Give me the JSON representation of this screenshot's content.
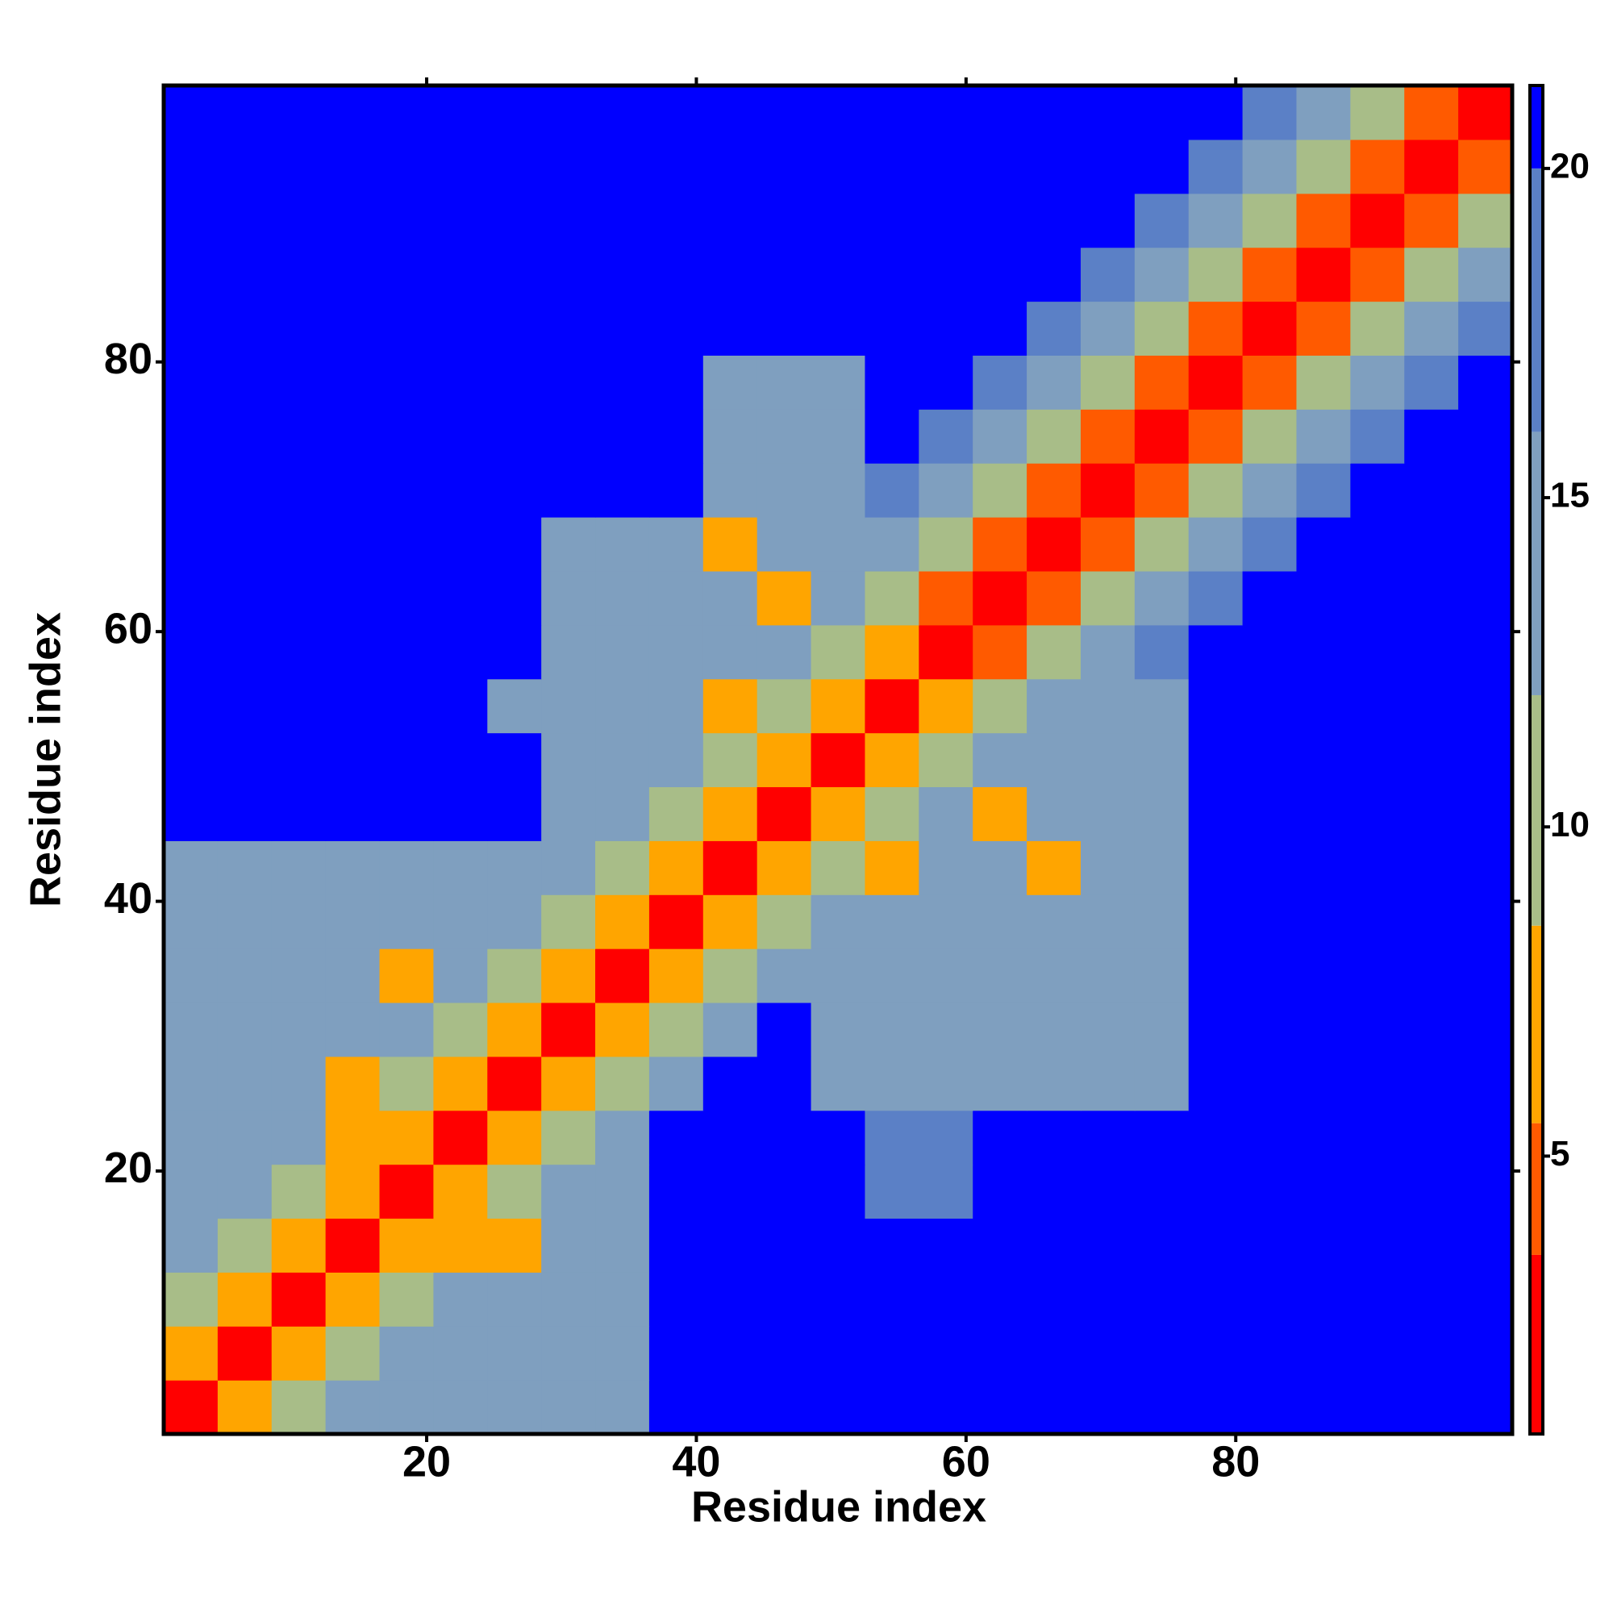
{
  "chart_data": {
    "type": "heatmap",
    "x_label": "Residue index",
    "y_label": "Residue index",
    "x": [
      2.5,
      6.5,
      10.5,
      14.5,
      18.5,
      22.5,
      26.5,
      30.5,
      34.5,
      38.5,
      42.5,
      46.5,
      50.5,
      54.5,
      58.5,
      62.5,
      66.5,
      70.5,
      74.5,
      78.5,
      82.5,
      86.5,
      90.5,
      94.5,
      98.5
    ],
    "y": [
      2.5,
      6.5,
      10.5,
      14.5,
      18.5,
      22.5,
      26.5,
      30.5,
      34.5,
      38.5,
      42.5,
      46.5,
      50.5,
      54.5,
      58.5,
      62.5,
      66.5,
      70.5,
      74.5,
      78.5,
      82.5,
      86.5,
      90.5,
      94.5,
      98.5
    ],
    "xlim": [
      0.5,
      100.5
    ],
    "ylim": [
      0.5,
      100.5
    ],
    "xticks": [
      20,
      40,
      60,
      80
    ],
    "yticks": [
      20,
      40,
      60,
      80
    ],
    "z": [
      [
        2,
        6,
        10,
        13,
        13,
        13,
        13,
        13,
        13,
        21,
        21,
        21,
        21,
        21,
        21,
        21,
        21,
        21,
        21,
        21,
        21,
        21,
        21,
        21,
        21
      ],
      [
        6,
        2,
        6,
        10,
        13,
        13,
        13,
        13,
        13,
        21,
        21,
        21,
        21,
        21,
        21,
        21,
        21,
        21,
        21,
        21,
        21,
        21,
        21,
        21,
        21
      ],
      [
        10,
        6,
        2,
        6,
        10,
        13,
        13,
        13,
        13,
        21,
        21,
        21,
        21,
        21,
        21,
        21,
        21,
        21,
        21,
        21,
        21,
        21,
        21,
        21,
        21
      ],
      [
        14,
        10,
        6,
        2,
        6,
        7,
        8,
        13,
        13,
        21,
        21,
        21,
        21,
        21,
        21,
        21,
        21,
        21,
        21,
        21,
        21,
        21,
        21,
        21,
        21
      ],
      [
        15,
        14,
        10,
        6,
        2,
        6,
        10,
        13,
        13,
        21,
        21,
        21,
        21,
        17,
        17,
        21,
        21,
        21,
        21,
        21,
        21,
        21,
        21,
        21,
        21
      ],
      [
        13,
        13,
        13,
        7,
        6,
        2,
        6,
        10,
        13,
        21,
        21,
        21,
        21,
        17,
        17,
        21,
        21,
        21,
        21,
        21,
        21,
        21,
        21,
        21,
        21
      ],
      [
        13,
        13,
        13,
        8,
        10,
        6,
        2,
        6,
        10,
        14,
        21,
        21,
        14,
        14,
        14,
        14,
        14,
        14,
        14,
        21,
        21,
        21,
        21,
        21,
        21
      ],
      [
        13,
        13,
        13,
        13,
        13,
        10,
        6,
        2,
        6,
        10,
        14,
        21,
        14,
        14,
        14,
        14,
        14,
        14,
        14,
        21,
        21,
        21,
        21,
        21,
        21
      ],
      [
        13,
        13,
        13,
        13,
        8,
        13,
        10,
        6,
        2,
        6,
        10,
        14,
        14,
        14,
        14,
        14,
        14,
        14,
        14,
        21,
        21,
        21,
        21,
        21,
        21
      ],
      [
        13,
        13,
        13,
        13,
        13,
        13,
        13,
        10,
        6,
        2,
        6,
        10,
        14,
        14,
        14,
        14,
        14,
        14,
        14,
        21,
        21,
        21,
        21,
        21,
        21
      ],
      [
        13,
        13,
        13,
        13,
        13,
        13,
        13,
        13,
        10,
        6,
        2,
        6,
        10,
        7,
        14,
        14,
        8,
        14,
        14,
        21,
        21,
        21,
        21,
        21,
        21
      ],
      [
        21,
        21,
        21,
        21,
        21,
        21,
        21,
        14,
        14,
        10,
        6,
        2,
        6,
        10,
        14,
        8,
        14,
        14,
        14,
        21,
        21,
        21,
        21,
        21,
        21
      ],
      [
        21,
        21,
        21,
        21,
        21,
        21,
        21,
        14,
        14,
        14,
        10,
        6,
        2,
        6,
        9,
        14,
        14,
        14,
        14,
        21,
        21,
        21,
        21,
        21,
        21
      ],
      [
        21,
        21,
        21,
        21,
        21,
        21,
        15,
        14,
        14,
        14,
        7,
        10,
        6,
        2,
        6,
        10,
        13,
        14,
        14,
        21,
        21,
        21,
        21,
        21,
        21
      ],
      [
        21,
        21,
        21,
        21,
        21,
        21,
        21,
        14,
        14,
        14,
        14,
        14,
        10,
        6,
        2,
        5,
        10,
        13,
        17,
        21,
        21,
        21,
        21,
        21,
        21
      ],
      [
        21,
        21,
        21,
        21,
        21,
        21,
        21,
        14,
        14,
        14,
        14,
        8,
        14,
        10,
        5,
        2,
        5,
        10,
        13,
        17,
        21,
        21,
        21,
        21,
        21
      ],
      [
        21,
        21,
        21,
        21,
        21,
        21,
        21,
        14,
        14,
        14,
        8,
        14,
        14,
        13,
        10,
        5,
        2,
        5,
        10,
        13,
        17,
        21,
        21,
        21,
        21
      ],
      [
        21,
        21,
        21,
        21,
        21,
        21,
        21,
        21,
        21,
        21,
        14,
        14,
        14,
        17,
        13,
        10,
        5,
        2,
        5,
        10,
        13,
        17,
        21,
        21,
        21
      ],
      [
        21,
        21,
        21,
        21,
        21,
        21,
        21,
        21,
        21,
        21,
        14,
        14,
        14,
        21,
        17,
        13,
        10,
        5,
        2,
        5,
        10,
        13,
        17,
        21,
        21
      ],
      [
        21,
        21,
        21,
        21,
        21,
        21,
        21,
        21,
        21,
        21,
        14,
        14,
        14,
        21,
        21,
        17,
        13,
        10,
        5,
        2,
        5,
        10,
        13,
        17,
        21
      ],
      [
        21,
        21,
        21,
        21,
        21,
        21,
        21,
        21,
        21,
        21,
        21,
        21,
        21,
        21,
        21,
        21,
        17,
        13,
        10,
        5,
        2,
        5,
        10,
        13,
        17
      ],
      [
        21,
        21,
        21,
        21,
        21,
        21,
        21,
        21,
        21,
        21,
        21,
        21,
        21,
        21,
        21,
        21,
        21,
        17,
        13,
        10,
        5,
        2,
        5,
        10,
        13
      ],
      [
        21,
        21,
        21,
        21,
        21,
        21,
        21,
        21,
        21,
        21,
        21,
        21,
        21,
        21,
        21,
        21,
        21,
        21,
        17,
        13,
        10,
        5,
        2,
        5,
        10
      ],
      [
        21,
        21,
        21,
        21,
        21,
        21,
        21,
        21,
        21,
        21,
        21,
        21,
        21,
        21,
        21,
        21,
        21,
        21,
        21,
        17,
        13,
        10,
        5,
        2,
        5
      ],
      [
        21,
        21,
        21,
        21,
        21,
        21,
        21,
        21,
        21,
        21,
        21,
        21,
        21,
        21,
        21,
        21,
        21,
        21,
        21,
        21,
        17,
        13,
        10,
        5,
        2
      ]
    ],
    "color_edges": [
      3.5,
      5.5,
      8.5,
      12,
      16,
      20
    ],
    "colors": [
      "#ff0000",
      "#ff5a00",
      "#ffa500",
      "#a8bd88",
      "#7f9fbf",
      "#5b80c6",
      "#0000ff"
    ],
    "colorbar_lim": [
      0.78,
      21.26
    ],
    "colorbar_ticks": [
      5,
      10,
      15,
      20
    ]
  }
}
